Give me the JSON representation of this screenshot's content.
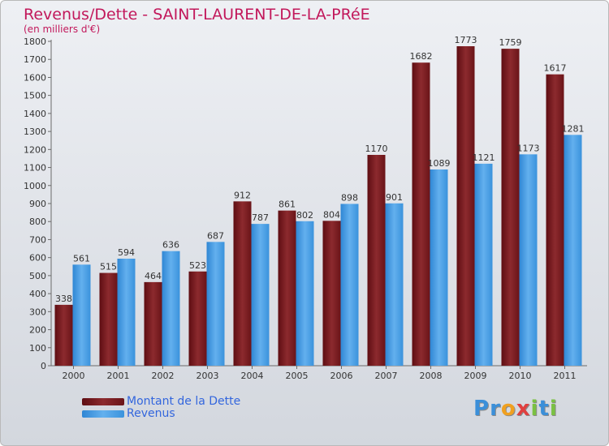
{
  "chart_data": {
    "type": "bar",
    "title": "Revenus/Dette - SAINT-LAURENT-DE-LA-PRéE",
    "subtitle": "(en milliers d'€)",
    "categories": [
      "2000",
      "2001",
      "2002",
      "2003",
      "2004",
      "2005",
      "2006",
      "2007",
      "2008",
      "2009",
      "2010",
      "2011"
    ],
    "series": [
      {
        "name": "Montant de la Dette",
        "color": "#7a1a1f",
        "values": [
          338,
          515,
          464,
          523,
          912,
          861,
          804,
          1170,
          1682,
          1773,
          1759,
          1617
        ]
      },
      {
        "name": "Revenus",
        "color": "#4a9de0",
        "values": [
          561,
          594,
          636,
          687,
          787,
          802,
          898,
          901,
          1089,
          1121,
          1173,
          1281
        ]
      }
    ],
    "ylim": [
      0,
      1800
    ],
    "ytick_step": 100,
    "grid": false,
    "legend_position": "bottom-left"
  },
  "logo": {
    "letters": [
      "P",
      "r",
      "o",
      "x",
      "i",
      "t",
      "i"
    ],
    "colors": [
      "#3b8fd9",
      "#3b8fd9",
      "#f0a020",
      "#e04040",
      "#7ac143",
      "#3b8fd9",
      "#7ac143"
    ]
  }
}
